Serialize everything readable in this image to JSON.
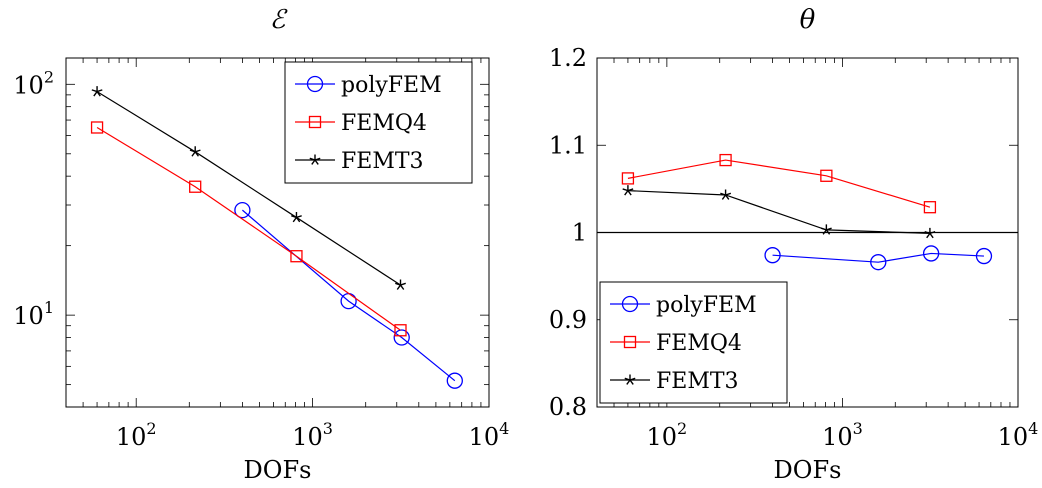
{
  "chart_data": [
    {
      "type": "line",
      "title": "ℰ",
      "xlabel": "DOFs",
      "ylabel": "",
      "xscale": "log",
      "yscale": "log",
      "xlim": [
        40,
        10000
      ],
      "ylim": [
        4,
        130
      ],
      "xticks": [
        {
          "value": 100,
          "base": "10",
          "exp": "2"
        },
        {
          "value": 1000,
          "base": "10",
          "exp": "3"
        },
        {
          "value": 10000,
          "base": "10",
          "exp": "4"
        }
      ],
      "yticks": [
        {
          "value": 10,
          "base": "10",
          "exp": "1"
        },
        {
          "value": 100,
          "base": "10",
          "exp": "2"
        }
      ],
      "legend_position": "top-right",
      "series": [
        {
          "name": "polyFEM",
          "color": "#0000ff",
          "marker": "circle",
          "x": [
            400,
            1600,
            3200,
            6400
          ],
          "y": [
            28.5,
            11.5,
            8.0,
            5.2
          ]
        },
        {
          "name": "FEMQ4",
          "color": "#ff0000",
          "marker": "square",
          "x": [
            60,
            216,
            810,
            3150
          ],
          "y": [
            65,
            36,
            18,
            8.6
          ]
        },
        {
          "name": "FEMT3",
          "color": "#000000",
          "marker": "star",
          "x": [
            60,
            216,
            810,
            3150
          ],
          "y": [
            93,
            51,
            26.5,
            13.5
          ]
        }
      ]
    },
    {
      "type": "line",
      "title": "θ",
      "xlabel": "DOFs",
      "ylabel": "",
      "xscale": "log",
      "yscale": "linear",
      "xlim": [
        40,
        10000
      ],
      "ylim": [
        0.8,
        1.2
      ],
      "xticks": [
        {
          "value": 100,
          "base": "10",
          "exp": "2"
        },
        {
          "value": 1000,
          "base": "10",
          "exp": "3"
        },
        {
          "value": 10000,
          "base": "10",
          "exp": "4"
        }
      ],
      "yticks": [
        {
          "value": 0.8,
          "label": "0.8"
        },
        {
          "value": 0.9,
          "label": "0.9"
        },
        {
          "value": 1.0,
          "label": "1"
        },
        {
          "value": 1.1,
          "label": "1.1"
        },
        {
          "value": 1.2,
          "label": "1.2"
        }
      ],
      "reference_line": 1.0,
      "legend_position": "bottom-left",
      "series": [
        {
          "name": "polyFEM",
          "color": "#0000ff",
          "marker": "circle",
          "x": [
            400,
            1600,
            3200,
            6400
          ],
          "y": [
            0.974,
            0.966,
            0.976,
            0.973
          ]
        },
        {
          "name": "FEMQ4",
          "color": "#ff0000",
          "marker": "square",
          "x": [
            60,
            216,
            810,
            3150
          ],
          "y": [
            1.062,
            1.083,
            1.065,
            1.029
          ]
        },
        {
          "name": "FEMT3",
          "color": "#000000",
          "marker": "star",
          "x": [
            60,
            216,
            810,
            3150
          ],
          "y": [
            1.048,
            1.043,
            1.003,
            0.999
          ]
        }
      ]
    }
  ]
}
